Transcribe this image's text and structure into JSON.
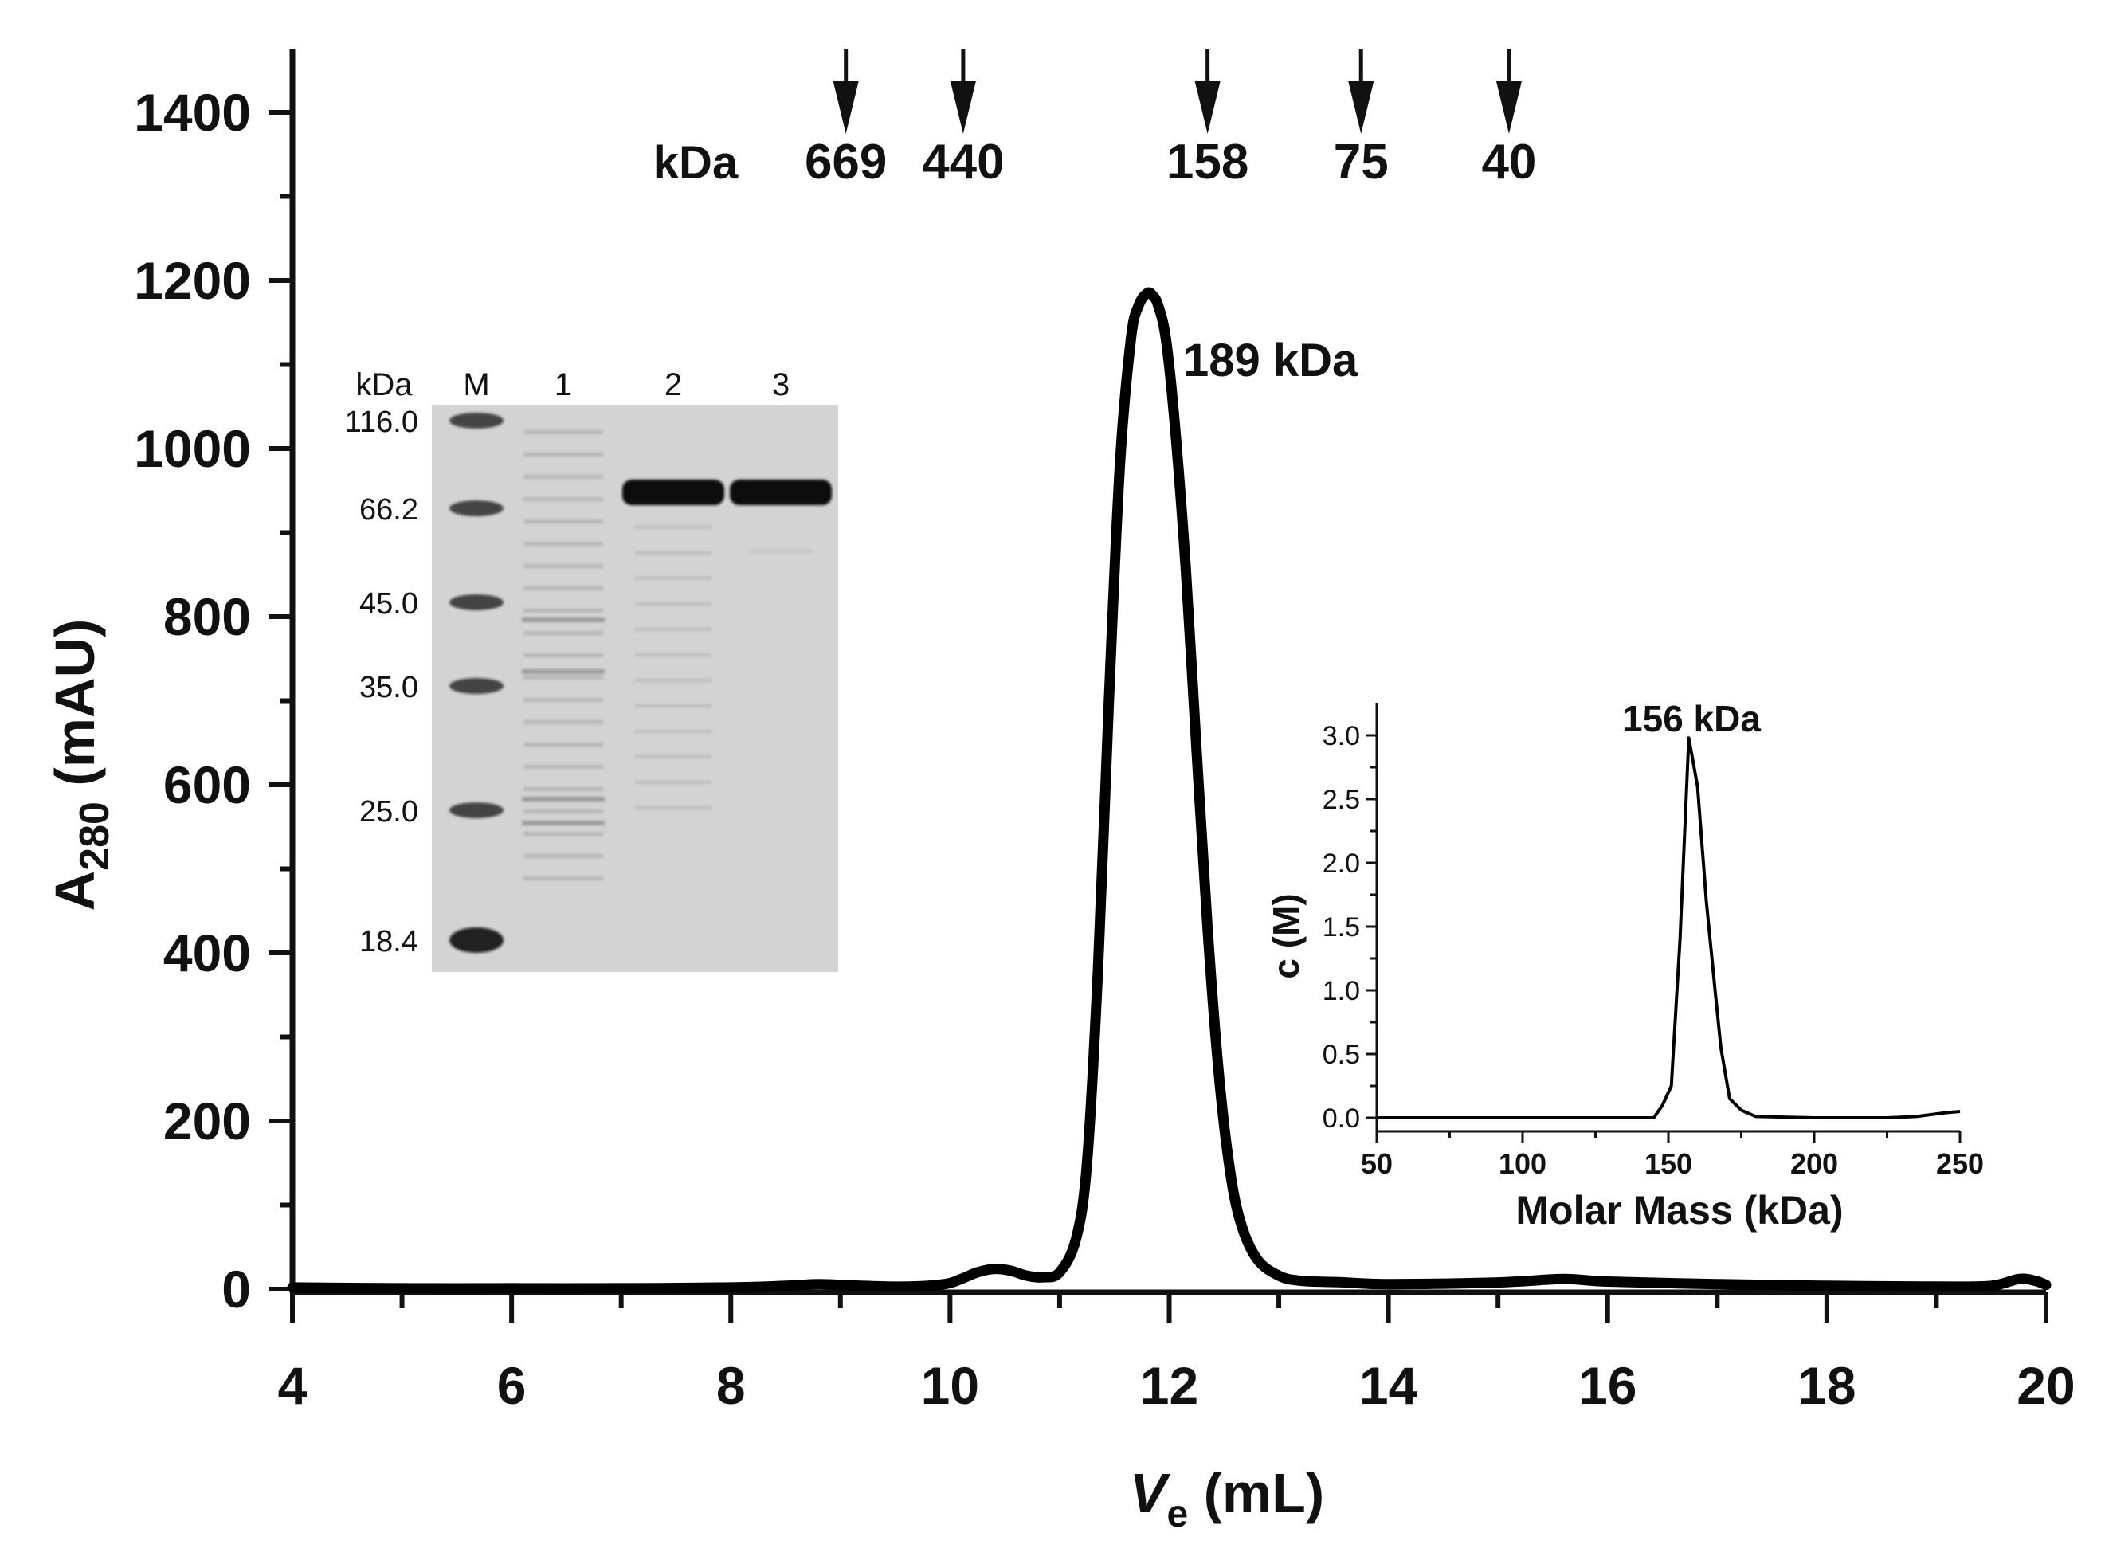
{
  "chart_data": [
    {
      "id": "main",
      "type": "line",
      "xlabel_main": "V",
      "xlabel_sub": "e",
      "xlabel_unit": " (mL)",
      "ylabel_main": "A",
      "ylabel_sub": "280",
      "ylabel_unit": " (mAU)",
      "xlim": [
        4,
        20
      ],
      "ylim": [
        0,
        1450
      ],
      "x_ticks": [
        4,
        6,
        8,
        10,
        12,
        14,
        16,
        18,
        20
      ],
      "x_tick_labels": [
        "4",
        "6",
        "8",
        "10",
        "12",
        "14",
        "16",
        "18",
        "20"
      ],
      "y_ticks": [
        0,
        200,
        400,
        600,
        800,
        1000,
        1200,
        1400
      ],
      "y_tick_labels": [
        "0",
        "200",
        "400",
        "600",
        "800",
        "1000",
        "1200",
        "1400"
      ],
      "x": [
        4.0,
        5.0,
        6.0,
        7.0,
        8.0,
        8.5,
        8.8,
        9.2,
        9.6,
        9.95,
        10.1,
        10.25,
        10.4,
        10.55,
        10.7,
        10.85,
        11.0,
        11.15,
        11.25,
        11.35,
        11.45,
        11.55,
        11.65,
        11.72,
        11.8,
        11.85,
        11.9,
        11.97,
        12.05,
        12.15,
        12.25,
        12.35,
        12.45,
        12.55,
        12.65,
        12.8,
        13.0,
        13.2,
        13.6,
        14.0,
        15.0,
        15.6,
        16.0,
        17.0,
        18.0,
        19.0,
        19.5,
        19.75,
        19.9,
        20.0
      ],
      "y": [
        2,
        1,
        1,
        1,
        2,
        4,
        6,
        4,
        3,
        6,
        12,
        20,
        24,
        22,
        16,
        14,
        20,
        60,
        150,
        380,
        700,
        980,
        1130,
        1170,
        1185,
        1182,
        1170,
        1130,
        1030,
        860,
        640,
        430,
        260,
        145,
        80,
        36,
        16,
        10,
        8,
        6,
        8,
        12,
        9,
        6,
        4,
        3,
        4,
        12,
        10,
        5
      ],
      "markers": [
        {
          "x": 9.05,
          "label": "669"
        },
        {
          "x": 10.12,
          "label": "440"
        },
        {
          "x": 12.35,
          "label": "158"
        },
        {
          "x": 13.75,
          "label": "75"
        },
        {
          "x": 15.1,
          "label": "40"
        }
      ],
      "marker_unit_label": "kDa",
      "peak_annotation": "189 kDa"
    },
    {
      "id": "inset",
      "type": "line",
      "xlabel": "Molar Mass (kDa)",
      "ylabel_main": "c",
      "ylabel_unit": " (M)",
      "xlim": [
        50,
        250
      ],
      "ylim": [
        -0.1,
        3.25
      ],
      "x_ticks": [
        50,
        100,
        150,
        200,
        250
      ],
      "x_tick_labels": [
        "50",
        "100",
        "150",
        "200",
        "250"
      ],
      "y_ticks": [
        0,
        0.5,
        1.0,
        1.5,
        2.0,
        2.5,
        3.0
      ],
      "y_tick_labels": [
        "0.0",
        "0.5",
        "1.0",
        "1.5",
        "2.0",
        "2.5",
        "3.0"
      ],
      "x": [
        50,
        100,
        145,
        148,
        151,
        154,
        157,
        160,
        163,
        166,
        168,
        171,
        175,
        180,
        200,
        225,
        235,
        245,
        250
      ],
      "y": [
        0.0,
        0.0,
        0.0,
        0.1,
        0.25,
        1.4,
        2.98,
        2.6,
        1.7,
        1.0,
        0.55,
        0.15,
        0.06,
        0.01,
        0.0,
        0.0,
        0.01,
        0.04,
        0.05
      ],
      "peak_annotation": "156 kDa"
    }
  ],
  "gel": {
    "header_unit": "kDa",
    "lane_labels": [
      "M",
      "1",
      "2",
      "3"
    ],
    "markers": [
      "116.0",
      "66.2",
      "45.0",
      "35.0",
      "25.0",
      "18.4"
    ]
  }
}
